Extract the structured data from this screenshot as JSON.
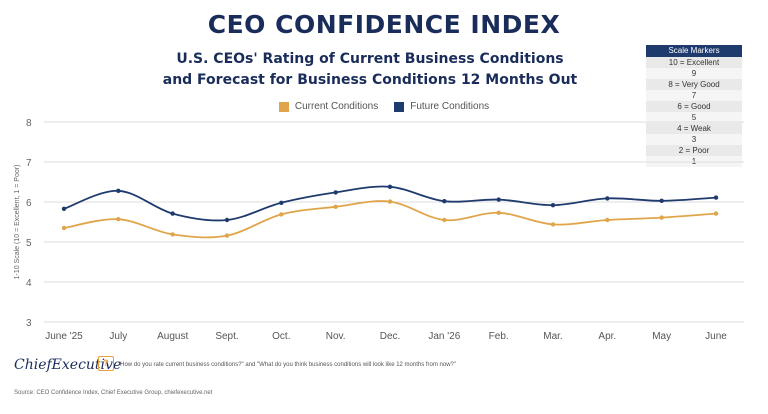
{
  "header": {
    "title": "CEO CONFIDENCE INDEX",
    "subtitle_line1": "U.S. CEOs' Rating of Current Business Conditions",
    "subtitle_line2": "and Forecast for Business Conditions 12 Months Out"
  },
  "scale_markers": {
    "title": "Scale Markers",
    "rows": [
      "10 = Excellent",
      "9",
      "8 = Very Good",
      "7",
      "6 = Good",
      "5",
      "4 = Weak",
      "3",
      "2 = Poor",
      "1"
    ]
  },
  "footer": {
    "logo": "ChiefExecutive",
    "question": "\"How do you rate current business conditions?\" and \"What do you think business conditions will look like 12 months from now?\"",
    "source": "Source: CEO Confidence Index, Chief Executive Group, chiefexecutive.net"
  },
  "colors": {
    "current": "#e0a54a",
    "future": "#1f3a6d",
    "grid": "#dddddd"
  },
  "chart_data": {
    "type": "line",
    "categories": [
      "June '25",
      "July",
      "August",
      "Sept.",
      "Oct.",
      "Nov.",
      "Dec.",
      "Jan '26",
      "Feb.",
      "Mar.",
      "Apr.",
      "May",
      "June"
    ],
    "series": [
      {
        "name": "Current Conditions",
        "values": [
          5.35,
          5.57,
          5.19,
          5.16,
          5.69,
          5.88,
          6.01,
          5.55,
          5.73,
          5.44,
          5.55,
          5.61,
          5.71
        ]
      },
      {
        "name": "Future Conditions",
        "values": [
          5.83,
          6.28,
          5.71,
          5.55,
          5.98,
          6.24,
          6.38,
          6.02,
          6.06,
          5.92,
          6.09,
          6.03,
          6.11
        ]
      }
    ],
    "ylabel": "1-10 Scale (10 = Excellent, 1 = Poor)",
    "ylim": [
      3,
      8
    ],
    "yticks": [
      "8",
      "7",
      "6",
      "5",
      "4",
      "3"
    ],
    "grid": true,
    "legend": "top"
  }
}
